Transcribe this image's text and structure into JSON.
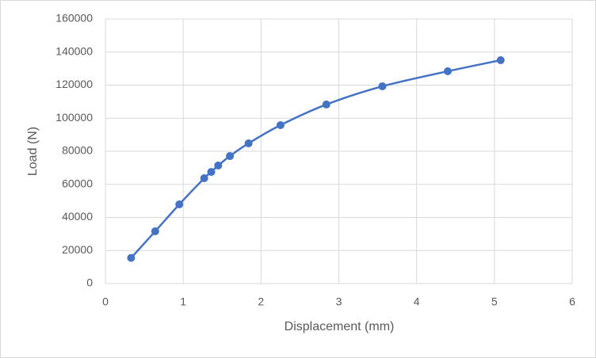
{
  "chart_data": {
    "type": "scatter",
    "x_label": "Displacement (mm)",
    "y_label": "Load (N)",
    "series": [
      {
        "color": "#4472c4",
        "x": [
          0.33,
          0.64,
          0.95,
          1.27,
          1.36,
          1.45,
          1.6,
          1.84,
          2.25,
          2.84,
          3.56,
          4.4,
          5.08
        ],
        "values": [
          15500,
          31600,
          47900,
          63700,
          67500,
          71400,
          77100,
          84800,
          95800,
          108300,
          119300,
          128400,
          135100
        ]
      }
    ],
    "xlim": [
      0,
      6
    ],
    "xticks": [
      0,
      1,
      2,
      3,
      4,
      5,
      6
    ],
    "ylim": [
      0,
      160000
    ],
    "yticks": [
      0,
      20000,
      40000,
      60000,
      80000,
      100000,
      120000,
      140000,
      160000
    ],
    "grid": true,
    "smooth": true
  }
}
